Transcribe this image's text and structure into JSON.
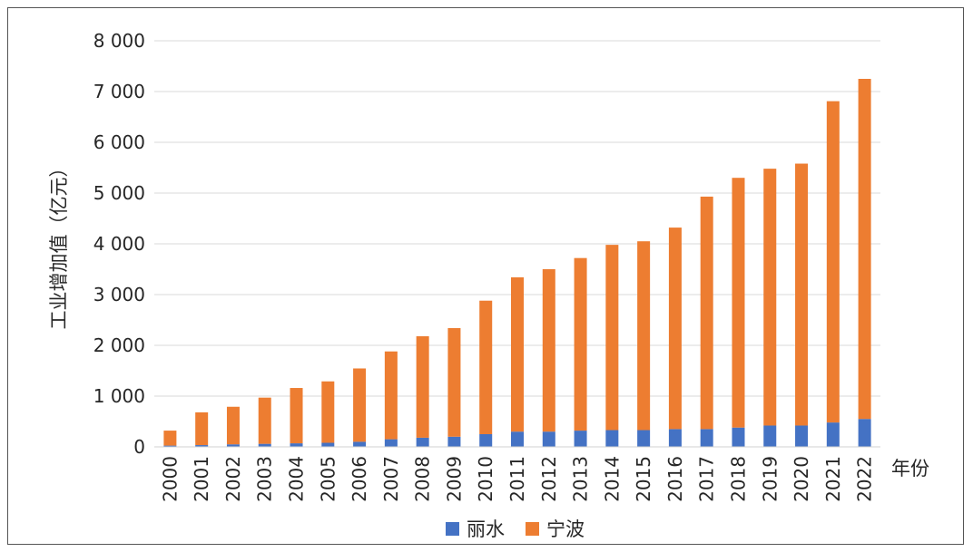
{
  "chart_data": {
    "type": "bar",
    "stacked": true,
    "categories": [
      "2000",
      "2001",
      "2002",
      "2003",
      "2004",
      "2005",
      "2006",
      "2007",
      "2008",
      "2009",
      "2010",
      "2011",
      "2012",
      "2013",
      "2014",
      "2015",
      "2016",
      "2017",
      "2018",
      "2019",
      "2020",
      "2021",
      "2022"
    ],
    "series": [
      {
        "name": "丽水",
        "color": "#4472C4",
        "values": [
          25,
          35,
          50,
          60,
          70,
          80,
          100,
          150,
          180,
          200,
          250,
          300,
          300,
          320,
          330,
          330,
          350,
          350,
          380,
          420,
          420,
          480,
          550
        ]
      },
      {
        "name": "宁波",
        "color": "#ED7D31",
        "values": [
          295,
          645,
          740,
          910,
          1090,
          1210,
          1445,
          1730,
          2000,
          2140,
          2630,
          3040,
          3200,
          3400,
          3650,
          3720,
          3970,
          4580,
          4920,
          5060,
          5160,
          6330,
          6700
        ]
      }
    ],
    "title": "",
    "xlabel": "年份",
    "ylabel": "工业增加值（亿元）",
    "ylim": [
      0,
      8000
    ],
    "yticks": [
      0,
      1000,
      2000,
      3000,
      4000,
      5000,
      6000,
      7000,
      8000
    ],
    "ytick_labels": [
      "0",
      "1 000",
      "2 000",
      "3 000",
      "4 000",
      "5 000",
      "6 000",
      "7 000",
      "8 000"
    ],
    "grid": true,
    "legend_position": "bottom"
  }
}
